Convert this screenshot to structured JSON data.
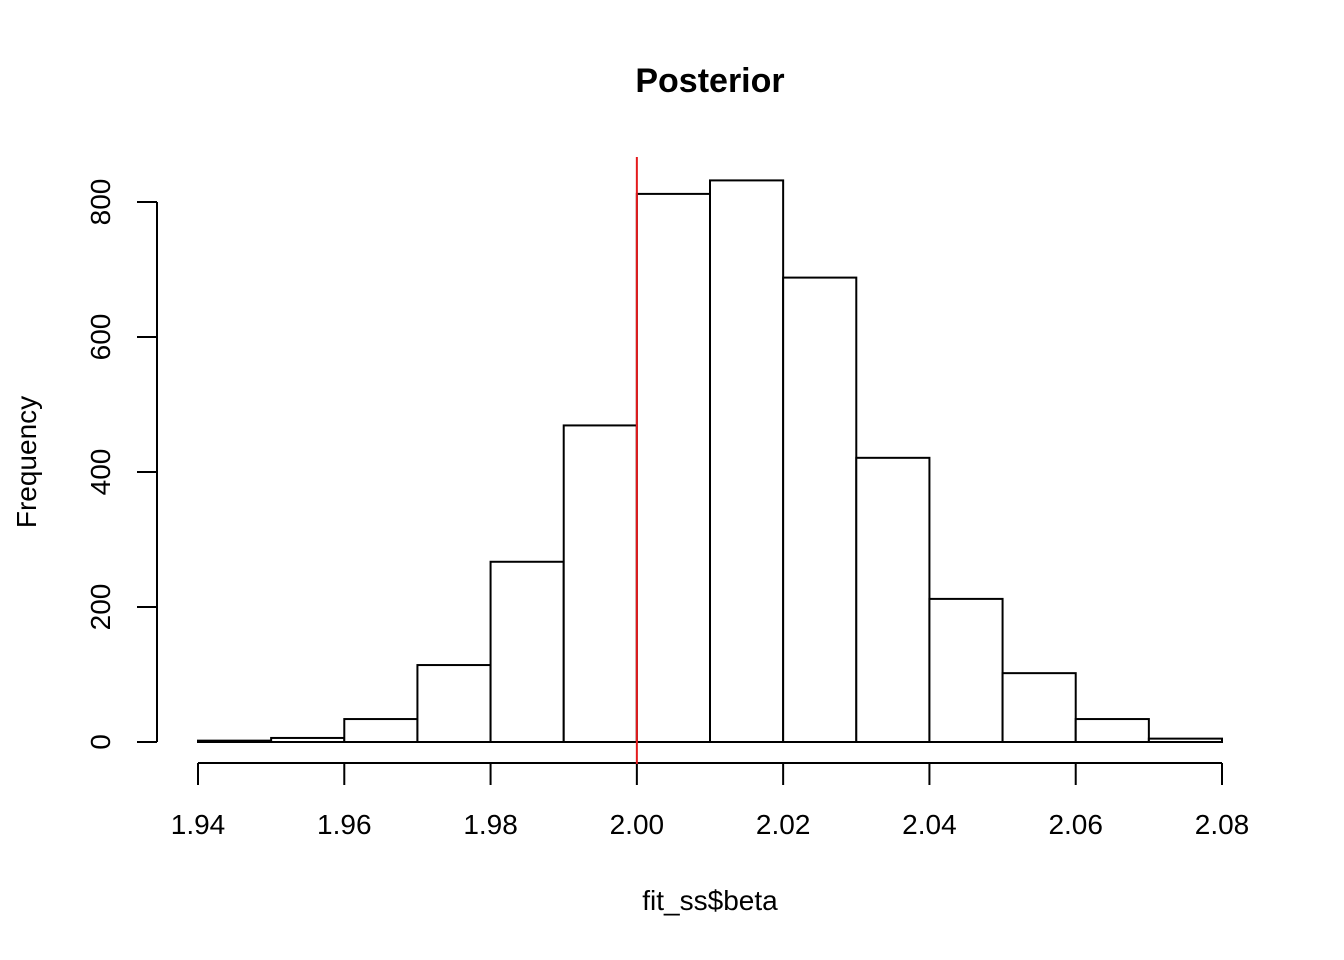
{
  "chart_data": {
    "type": "bar",
    "title": "Posterior",
    "xlabel": "fit_ss$beta",
    "ylabel": "Frequency",
    "xlim": [
      1.94,
      2.08
    ],
    "ylim": [
      0,
      800
    ],
    "x_ticks": [
      "1.94",
      "1.96",
      "1.98",
      "2.00",
      "2.02",
      "2.04",
      "2.06",
      "2.08"
    ],
    "y_ticks": [
      "0",
      "200",
      "400",
      "600",
      "800"
    ],
    "bins": [
      {
        "from": 1.94,
        "to": 1.95,
        "count": 2
      },
      {
        "from": 1.95,
        "to": 1.96,
        "count": 6
      },
      {
        "from": 1.96,
        "to": 1.97,
        "count": 34
      },
      {
        "from": 1.97,
        "to": 1.98,
        "count": 114
      },
      {
        "from": 1.98,
        "to": 1.99,
        "count": 267
      },
      {
        "from": 1.99,
        "to": 2.0,
        "count": 469
      },
      {
        "from": 2.0,
        "to": 2.01,
        "count": 812
      },
      {
        "from": 2.01,
        "to": 2.02,
        "count": 832
      },
      {
        "from": 2.02,
        "to": 2.03,
        "count": 688
      },
      {
        "from": 2.03,
        "to": 2.04,
        "count": 421
      },
      {
        "from": 2.04,
        "to": 2.05,
        "count": 212
      },
      {
        "from": 2.05,
        "to": 2.06,
        "count": 102
      },
      {
        "from": 2.06,
        "to": 2.07,
        "count": 34
      },
      {
        "from": 2.07,
        "to": 2.08,
        "count": 5
      }
    ],
    "reference_line": {
      "x": 2.0,
      "color": "#e41a1c"
    },
    "grid": false
  }
}
